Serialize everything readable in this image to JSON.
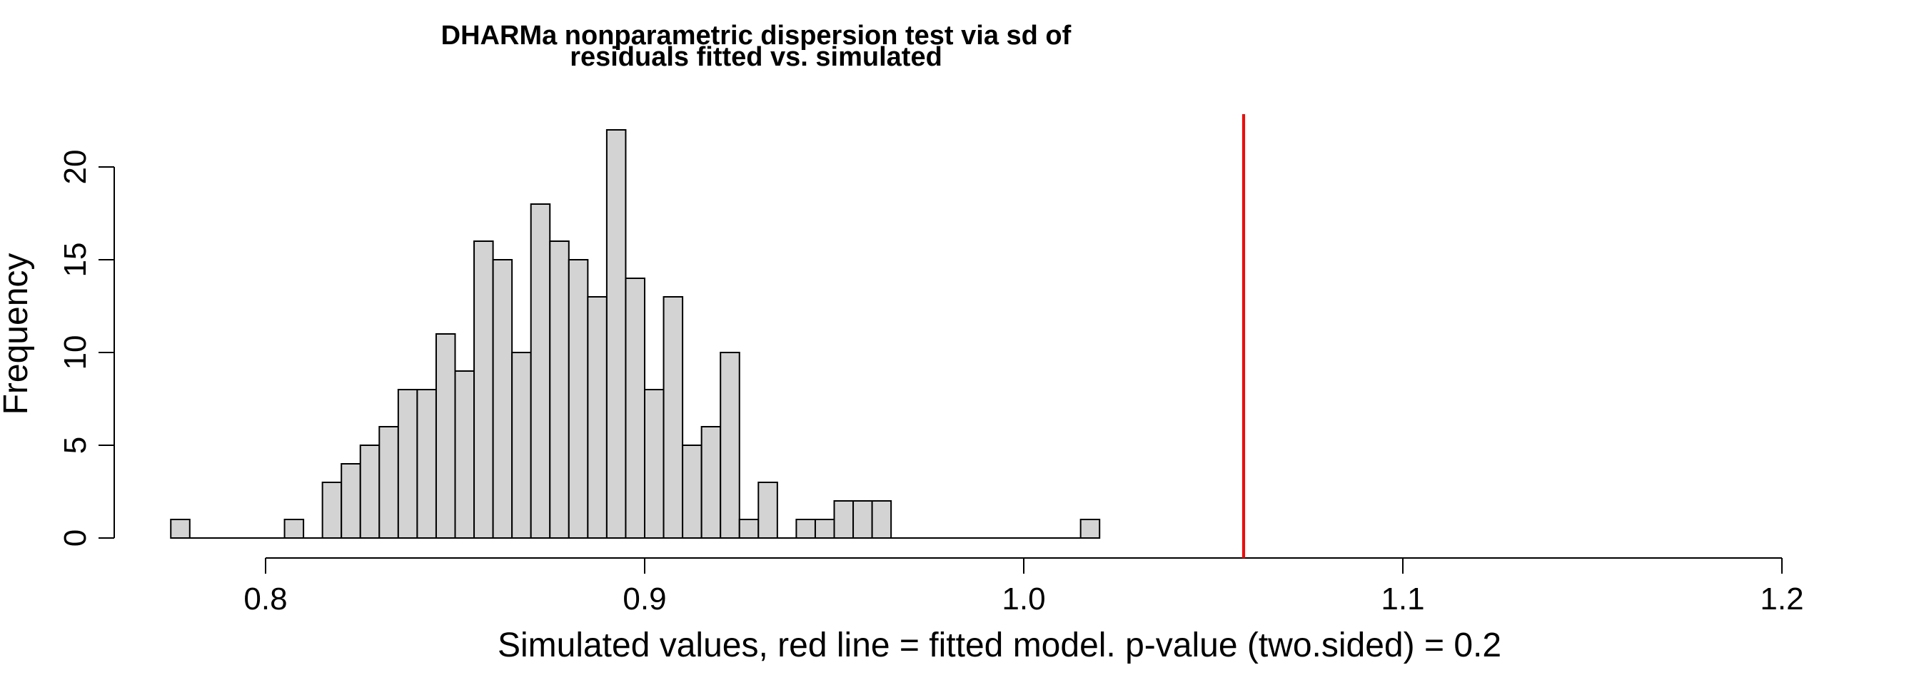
{
  "chart_data": {
    "type": "bar",
    "title": "DHARMa nonparametric dispersion test via sd of residuals fitted vs. simulated",
    "title_lines": [
      "DHARMa nonparametric dispersion test via sd of",
      "residuals fitted vs. simulated"
    ],
    "xlabel": "Simulated values, red line = fitted model. p-value (two.sided) = 0.2",
    "ylabel": "Frequency",
    "bin_width": 0.005,
    "bin_start": 0.775,
    "counts": [
      1,
      0,
      0,
      0,
      0,
      0,
      1,
      0,
      3,
      4,
      5,
      6,
      8,
      8,
      11,
      9,
      16,
      15,
      10,
      18,
      16,
      15,
      13,
      22,
      14,
      8,
      13,
      5,
      6,
      10,
      1,
      3,
      0,
      1,
      1,
      2,
      2,
      2,
      0,
      0,
      0,
      0,
      0,
      0,
      0,
      0,
      0,
      0,
      1
    ],
    "xlim": [
      0.775,
      1.22
    ],
    "ylim": [
      0,
      22
    ],
    "x_ticks": [
      0.8,
      0.9,
      1.0,
      1.1,
      1.2
    ],
    "x_tick_labels": [
      "0.8",
      "0.9",
      "1.0",
      "1.1",
      "1.2"
    ],
    "y_ticks": [
      0,
      5,
      10,
      15,
      20
    ],
    "y_tick_labels": [
      "0",
      "5",
      "10",
      "15",
      "20"
    ],
    "fitted_value": 1.058,
    "fitted_line_color": "#ff0000",
    "bar_fill": "#d3d3d3",
    "bar_stroke": "#000000",
    "grid": false,
    "legend": "none"
  }
}
